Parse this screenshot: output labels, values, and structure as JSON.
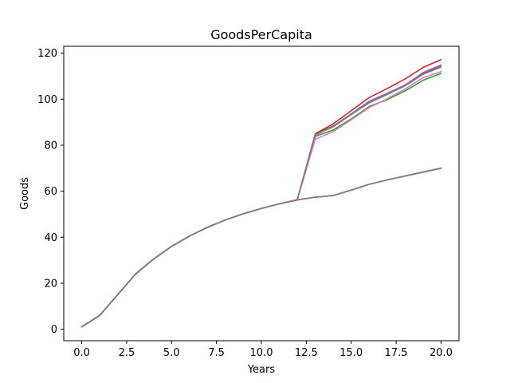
{
  "chart_data": {
    "type": "line",
    "title": "GoodsPerCapita",
    "xlabel": "Years",
    "ylabel": "Goods",
    "xlim": [
      -1,
      21
    ],
    "ylim": [
      -5,
      123
    ],
    "xticks": [
      0,
      2.5,
      5,
      7.5,
      10,
      12.5,
      15,
      17.5,
      20
    ],
    "xtick_labels": [
      "0.0",
      "2.5",
      "5.0",
      "7.5",
      "10.0",
      "12.5",
      "15.0",
      "17.5",
      "20.0"
    ],
    "yticks": [
      0,
      20,
      40,
      60,
      80,
      100,
      120
    ],
    "ytick_labels": [
      "0",
      "20",
      "40",
      "60",
      "80",
      "100",
      "120"
    ],
    "grid": false,
    "legend": "none",
    "x": [
      0,
      1,
      2,
      3,
      4,
      5,
      6,
      7,
      8,
      9,
      10,
      11,
      12,
      13,
      14,
      15,
      16,
      17,
      18,
      19,
      20
    ],
    "series": [
      {
        "color": "#8c564b",
        "values": [
          1,
          6,
          15,
          24,
          30.5,
          36,
          40.5,
          44.3,
          47.5,
          50.2,
          52.5,
          54.5,
          56.3,
          84.8,
          88.4,
          93.5,
          99,
          102.5,
          106,
          111.3,
          114.3
        ]
      },
      {
        "color": "#d62728",
        "values": [
          1,
          6,
          15,
          24,
          30.5,
          36,
          40.5,
          44.3,
          47.5,
          50.2,
          52.5,
          54.5,
          56.3,
          85,
          89.3,
          95,
          100.7,
          104.6,
          108.8,
          113.8,
          117.2
        ]
      },
      {
        "color": "#2ca02c",
        "values": [
          1,
          6,
          15,
          24,
          30.5,
          36,
          40.5,
          44.3,
          47.5,
          50.2,
          52.5,
          54.5,
          56.3,
          83.8,
          86.6,
          91.4,
          96.8,
          99.8,
          103.6,
          108.2,
          111.2
        ]
      },
      {
        "color": "#9467bd",
        "values": [
          1,
          6,
          15,
          24,
          30.5,
          36,
          40.5,
          44.3,
          47.5,
          50.2,
          52.5,
          54.5,
          56.3,
          84.3,
          88.2,
          93.7,
          99.1,
          102.6,
          106.2,
          111.6,
          114.9
        ]
      },
      {
        "color": "#e377c2",
        "values": [
          1,
          6,
          15,
          24,
          30.5,
          36,
          40.5,
          44.3,
          47.5,
          50.2,
          52.5,
          54.5,
          56.3,
          82.6,
          85.9,
          91,
          96.3,
          100.2,
          104.4,
          109.3,
          112
        ]
      },
      {
        "color": "#7f7f7f",
        "values": [
          1,
          6,
          15,
          24,
          30.5,
          36,
          40.5,
          44.3,
          47.5,
          50.2,
          52.5,
          54.5,
          56.3,
          84.6,
          88,
          93.3,
          98.4,
          102,
          105.8,
          110.8,
          114
        ]
      },
      {
        "color": "#1f77b4",
        "values": [
          1,
          6,
          15,
          24,
          30.5,
          36,
          40.5,
          44.3,
          47.5,
          50.2,
          52.5,
          54.5,
          56.2,
          57.4,
          58.1,
          60.5,
          63,
          64.9,
          66.6,
          68.3,
          70
        ]
      },
      {
        "color": "#bcbd22",
        "values": [
          1,
          6,
          15,
          24,
          30.5,
          36,
          40.5,
          44.3,
          47.5,
          50.2,
          52.5,
          54.5,
          56.2,
          57.4,
          58.1,
          60.5,
          63,
          64.9,
          66.6,
          68.3,
          70
        ]
      },
      {
        "color": "#ff7f0e",
        "values": [
          1,
          6,
          15,
          24,
          30.5,
          36,
          40.5,
          44.3,
          47.5,
          50.2,
          52.5,
          54.5,
          56.2,
          57.4,
          58.1,
          60.5,
          63,
          64.9,
          66.6,
          68.3,
          70
        ]
      },
      {
        "color": "#8c564b",
        "values": [
          1,
          6,
          15,
          24,
          30.5,
          36,
          40.5,
          44.3,
          47.5,
          50.2,
          52.5,
          54.5,
          56.2,
          57.4,
          58.1,
          60.5,
          63,
          64.9,
          66.6,
          68.3,
          70
        ]
      },
      {
        "color": "#e377c2",
        "values": [
          1,
          6,
          15,
          24,
          30.5,
          36,
          40.5,
          44.3,
          47.5,
          50.2,
          52.5,
          54.5,
          56.2,
          57.4,
          58.1,
          60.5,
          63,
          64.9,
          66.6,
          68.3,
          70
        ]
      },
      {
        "color": "#7f7f7f",
        "values": [
          1,
          6,
          15,
          24,
          30.5,
          36,
          40.5,
          44.3,
          47.5,
          50.2,
          52.5,
          54.5,
          56.2,
          57.4,
          58.1,
          60.5,
          63,
          64.9,
          66.6,
          68.3,
          70
        ]
      }
    ]
  }
}
